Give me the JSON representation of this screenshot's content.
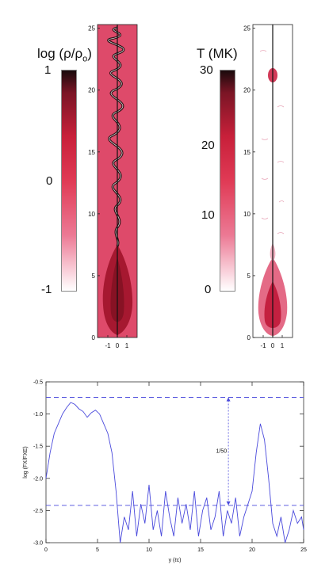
{
  "density_colorbar": {
    "title_main": "log (",
    "title_rho": "ρ",
    "title_slash": "/",
    "title_rho0": "ρ",
    "title_sub": "o",
    "title_close": ")",
    "ticks": [
      "1",
      "0",
      "-1"
    ]
  },
  "temperature_colorbar": {
    "title": "T (MK)",
    "ticks": [
      "30",
      "20",
      "10",
      "0"
    ]
  },
  "density_panel": {
    "y_ticks": [
      "0",
      "5",
      "10",
      "15",
      "20",
      "25"
    ],
    "x_ticks": [
      "-1",
      "0",
      "1"
    ]
  },
  "temperature_panel": {
    "y_ticks": [
      "0",
      "5",
      "10",
      "15",
      "20",
      "25"
    ],
    "x_ticks": [
      "-1",
      "0",
      "1"
    ]
  },
  "colors": {
    "panel_bg": "#de4a6a",
    "panel_dark": "#2a1014",
    "line": "#4a4adc",
    "dash": "#4a4adc"
  },
  "chart_data": [
    {
      "type": "line",
      "xlabel": "y (ℓc)",
      "ylabel": "log (FX/FXE)",
      "xlim": [
        0,
        25
      ],
      "ylim": [
        -3.0,
        -0.5
      ],
      "x_ticks": [
        "0",
        "5",
        "10",
        "15",
        "20",
        "25"
      ],
      "y_ticks": [
        "-0.5",
        "-1.0",
        "-1.5",
        "-2.0",
        "-2.5",
        "-3.0"
      ],
      "grid": false,
      "annotation": "1/50",
      "reference_lines": [
        -0.74,
        -2.42
      ],
      "annotation_arrow_x": 17.7,
      "x": [
        0,
        0.4,
        0.8,
        1.2,
        1.6,
        2.0,
        2.4,
        2.8,
        3.2,
        3.6,
        4.0,
        4.4,
        4.8,
        5.2,
        5.6,
        6.0,
        6.4,
        6.8,
        7.2,
        7.6,
        8.0,
        8.4,
        8.8,
        9.2,
        9.6,
        10.0,
        10.4,
        10.8,
        11.2,
        11.6,
        12.0,
        12.4,
        12.8,
        13.2,
        13.6,
        14.0,
        14.4,
        14.8,
        15.2,
        15.6,
        16.0,
        16.4,
        16.8,
        17.2,
        17.6,
        18.0,
        18.4,
        18.8,
        19.2,
        19.6,
        20.0,
        20.4,
        20.8,
        21.2,
        21.6,
        22.0,
        22.4,
        22.8,
        23.2,
        23.6,
        24.0,
        24.4,
        24.8,
        25.0
      ],
      "values": [
        -2.0,
        -1.6,
        -1.3,
        -1.15,
        -1.0,
        -0.9,
        -0.82,
        -0.85,
        -0.92,
        -0.96,
        -1.05,
        -0.98,
        -0.94,
        -1.0,
        -1.15,
        -1.3,
        -1.6,
        -2.2,
        -3.0,
        -2.6,
        -2.8,
        -2.2,
        -2.9,
        -2.4,
        -2.7,
        -2.1,
        -2.8,
        -2.5,
        -2.9,
        -2.2,
        -2.6,
        -2.9,
        -2.3,
        -2.7,
        -2.4,
        -2.8,
        -2.2,
        -2.9,
        -2.5,
        -2.3,
        -2.8,
        -2.6,
        -2.2,
        -2.9,
        -2.5,
        -2.7,
        -2.3,
        -2.9,
        -2.6,
        -2.4,
        -2.2,
        -1.6,
        -1.15,
        -1.4,
        -2.0,
        -2.7,
        -2.9,
        -2.6,
        -3.0,
        -2.8,
        -2.5,
        -2.7,
        -2.6,
        -2.8
      ]
    }
  ]
}
